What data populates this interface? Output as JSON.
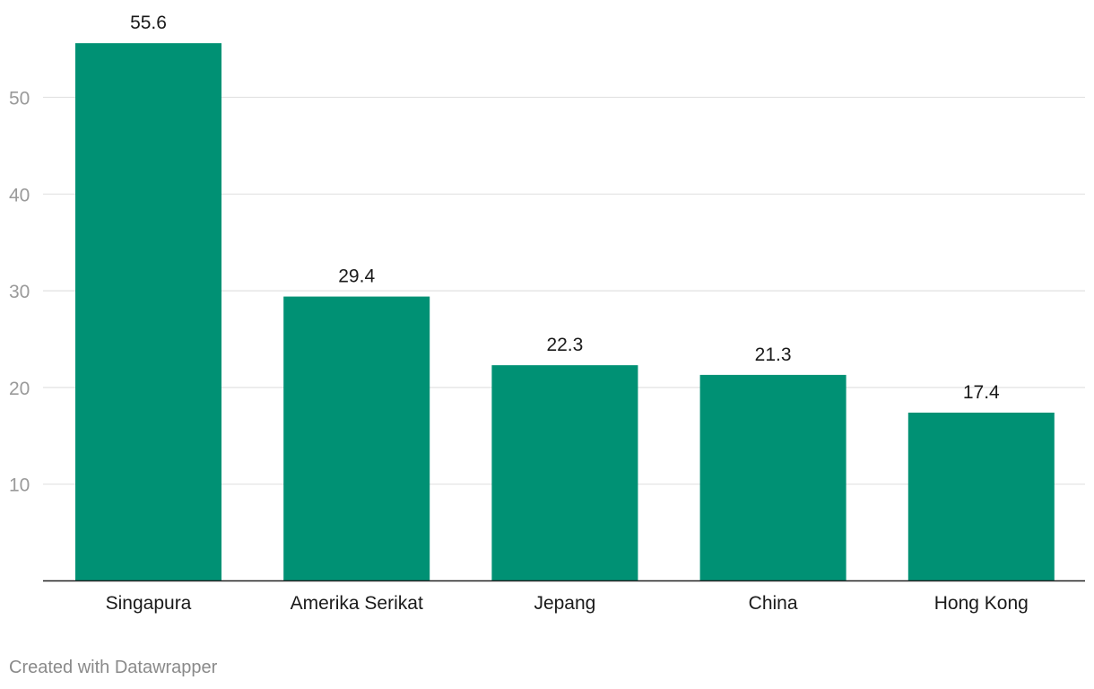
{
  "chart_data": {
    "type": "bar",
    "categories": [
      "Singapura",
      "Amerika Serikat",
      "Jepang",
      "China",
      "Hong Kong"
    ],
    "values": [
      55.6,
      29.4,
      22.3,
      21.3,
      17.4
    ],
    "value_labels": [
      "55.6",
      "29.4",
      "22.3",
      "21.3",
      "17.4"
    ],
    "yticks": [
      10,
      20,
      30,
      40,
      50
    ],
    "ylim": [
      0,
      60
    ],
    "grid": true,
    "bar_color": "#009174",
    "title": "",
    "xlabel": "",
    "ylabel": ""
  },
  "footer": {
    "credit": "Created with Datawrapper"
  }
}
